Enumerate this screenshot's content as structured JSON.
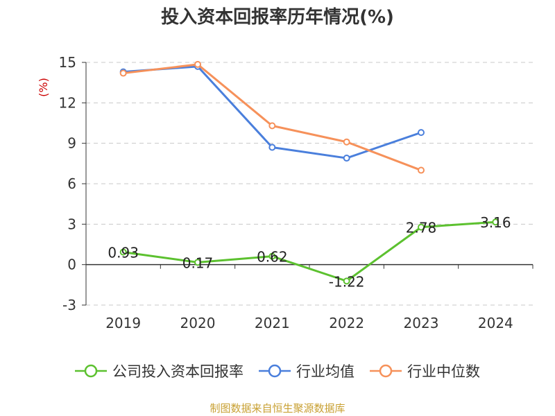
{
  "chart_data": {
    "type": "line",
    "title": "投入资本回报率历年情况(%)",
    "ylabel": "(%)",
    "categories": [
      "2019",
      "2020",
      "2021",
      "2022",
      "2023",
      "2024"
    ],
    "ylim": [
      -3,
      15
    ],
    "yticks": [
      -3,
      0,
      3,
      6,
      9,
      12,
      15
    ],
    "grid": true,
    "legend_position": "bottom",
    "series": [
      {
        "name": "公司投入资本回报率",
        "color": "#5cc12f",
        "values": [
          0.93,
          0.17,
          0.62,
          -1.22,
          2.78,
          3.16
        ],
        "labels": [
          "0.93",
          "0.17",
          "0.62",
          "-1.22",
          "2.78",
          "3.16"
        ]
      },
      {
        "name": "行业均值",
        "color": "#4a7fdc",
        "values": [
          14.3,
          14.7,
          8.7,
          7.9,
          9.8,
          null
        ]
      },
      {
        "name": "行业中位数",
        "color": "#f6915a",
        "values": [
          14.2,
          14.85,
          10.3,
          9.1,
          7.0,
          null
        ]
      }
    ]
  },
  "source_text": "制图数据来自恒生聚源数据库"
}
